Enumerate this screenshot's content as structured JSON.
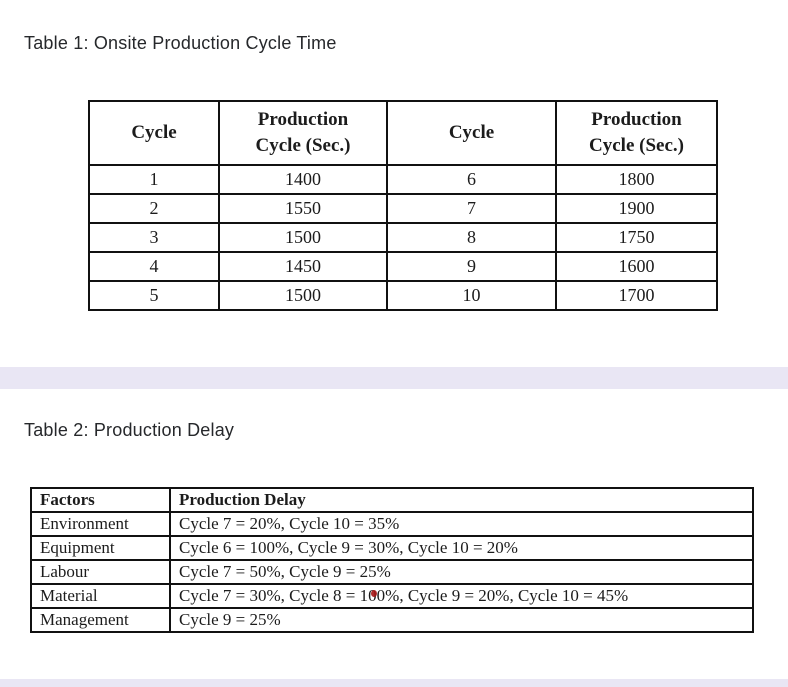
{
  "page": {
    "background": "#ffffff",
    "band_color": "#e9e6f4",
    "table_border_color": "#111111"
  },
  "table1": {
    "title": "Table 1: Onsite Production Cycle Time",
    "headers": [
      [
        "Cycle"
      ],
      [
        "Production",
        "Cycle (Sec.)"
      ],
      [
        "Cycle"
      ],
      [
        "Production",
        "Cycle (Sec.)"
      ]
    ],
    "rows": [
      [
        "1",
        "1400",
        "6",
        "1800"
      ],
      [
        "2",
        "1550",
        "7",
        "1900"
      ],
      [
        "3",
        "1500",
        "8",
        "1750"
      ],
      [
        "4",
        "1450",
        "9",
        "1600"
      ],
      [
        "5",
        "1500",
        "10",
        "1700"
      ]
    ]
  },
  "table2": {
    "title": "Table 2: Production Delay",
    "headers": [
      "Factors",
      "Production Delay"
    ],
    "rows": [
      {
        "factor": "Environment",
        "delay": "Cycle 7 = 20%, Cycle 10 = 35%"
      },
      {
        "factor": "Equipment",
        "delay": "Cycle 6 = 100%, Cycle 9 = 30%, Cycle 10 = 20%"
      },
      {
        "factor": "Labour",
        "delay": "Cycle 7 = 50%, Cycle 9 = 25%"
      },
      {
        "factor": "Material",
        "delay_pre": "Cycle 7 = 30%, Cycle 8 = 1",
        "delay_marked": "0",
        "delay_post": "0%, Cycle 9 = 20%, Cycle 10 = 45%",
        "mark_color": "#a41414"
      },
      {
        "factor": "Management",
        "delay": "Cycle 9 = 25%"
      }
    ]
  }
}
